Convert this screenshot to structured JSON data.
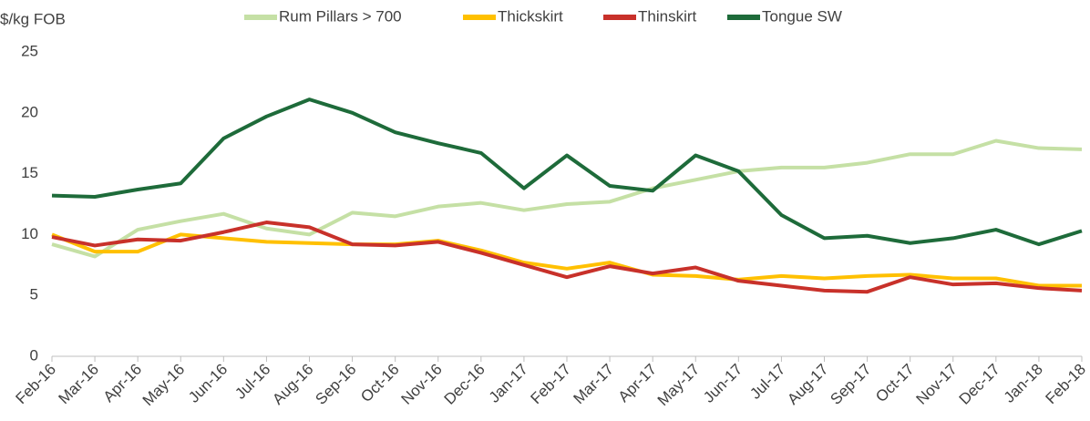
{
  "chart_data": {
    "type": "line",
    "y_label": "$/kg FOB",
    "categories": [
      "Feb-16",
      "Mar-16",
      "Apr-16",
      "May-16",
      "Jun-16",
      "Jul-16",
      "Aug-16",
      "Sep-16",
      "Oct-16",
      "Nov-16",
      "Dec-16",
      "Jan-17",
      "Feb-17",
      "Mar-17",
      "Apr-17",
      "May-17",
      "Jun-17",
      "Jul-17",
      "Aug-17",
      "Sep-17",
      "Oct-17",
      "Nov-17",
      "Dec-17",
      "Jan-18",
      "Feb-18"
    ],
    "series": [
      {
        "name": "Rum Pillars > 700",
        "color": "#c5e0a5",
        "values": [
          9.2,
          8.2,
          10.4,
          11.1,
          11.7,
          10.5,
          10.0,
          11.8,
          11.5,
          12.3,
          12.6,
          12.0,
          12.5,
          12.7,
          13.8,
          14.5,
          15.2,
          15.5,
          15.5,
          15.9,
          16.6,
          16.6,
          17.7,
          17.1,
          17.0
        ]
      },
      {
        "name": "Thickskirt",
        "color": "#ffc000",
        "values": [
          10.0,
          8.6,
          8.6,
          10.0,
          9.7,
          9.4,
          9.3,
          9.2,
          9.2,
          9.5,
          8.7,
          7.7,
          7.2,
          7.7,
          6.7,
          6.6,
          6.3,
          6.6,
          6.4,
          6.6,
          6.7,
          6.4,
          6.4,
          5.8,
          5.8
        ]
      },
      {
        "name": "Thinskirt",
        "color": "#c8312a",
        "values": [
          9.8,
          9.1,
          9.6,
          9.5,
          10.2,
          11.0,
          10.6,
          9.2,
          9.1,
          9.4,
          8.5,
          7.5,
          6.5,
          7.4,
          6.8,
          7.3,
          6.2,
          5.8,
          5.4,
          5.3,
          6.5,
          5.9,
          6.0,
          5.6,
          5.4
        ]
      },
      {
        "name": "Tongue SW",
        "color": "#1e6b3a",
        "values": [
          13.2,
          13.1,
          13.7,
          14.2,
          17.9,
          19.7,
          21.1,
          20.0,
          18.4,
          17.5,
          16.7,
          13.8,
          16.5,
          14.0,
          13.6,
          16.5,
          15.2,
          11.6,
          9.7,
          9.9,
          9.3,
          9.7,
          10.4,
          9.2,
          10.3
        ]
      }
    ],
    "ylim": [
      0,
      25
    ],
    "yticks": [
      0,
      5,
      10,
      15,
      20,
      25
    ],
    "grid": false
  }
}
